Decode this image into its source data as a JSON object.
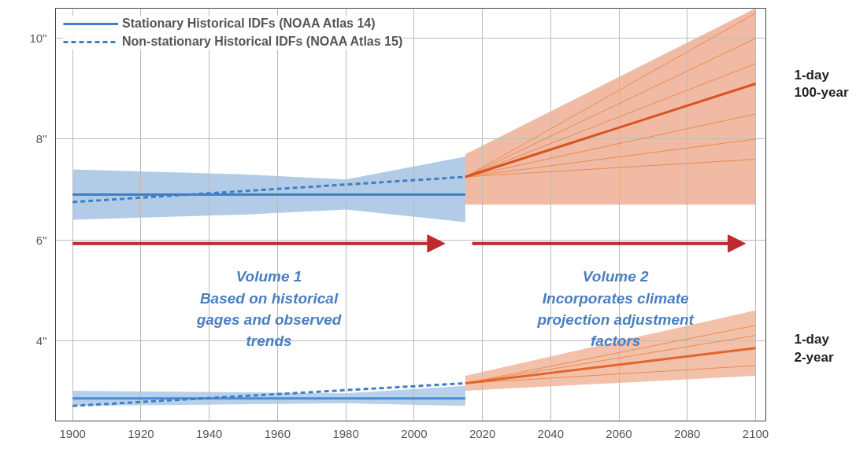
{
  "chart_data": {
    "type": "line",
    "xlim": [
      1895,
      2103
    ],
    "ylim": [
      2.4,
      10.6
    ],
    "xticks": [
      1900,
      1920,
      1940,
      1960,
      1980,
      2000,
      2020,
      2040,
      2060,
      2080,
      2100
    ],
    "yticks": [
      {
        "value": 4,
        "label": "4\""
      },
      {
        "value": 6,
        "label": "6\""
      },
      {
        "value": 8,
        "label": "8\""
      },
      {
        "value": 10,
        "label": "10\""
      }
    ],
    "grid": true,
    "legend": "top left",
    "series": [
      {
        "name": "Stationary Historical IDFs (NOAA Atlas 14)",
        "color": "#3f7fc4",
        "x": [
          1900,
          1950,
          1980,
          2015
        ],
        "values": [
          6.9,
          6.9,
          6.9,
          6.9
        ],
        "lower": [
          6.4,
          6.5,
          6.6,
          6.35
        ],
        "upper": [
          7.4,
          7.3,
          7.2,
          7.65
        ]
      },
      {
        "name": "Non-stationary Historical IDFs (NOAA Atlas 15)",
        "color": "#3f7fc4",
        "x": [
          1900,
          2015
        ],
        "values": [
          6.75,
          7.25
        ],
        "line_style": "dashed"
      },
      {
        "color": "#4b8bd0",
        "x": [
          1900,
          1980,
          2015
        ],
        "values": [
          2.85,
          2.85,
          2.85
        ],
        "lower": [
          2.7,
          2.75,
          2.7
        ],
        "upper": [
          3.0,
          2.95,
          3.1
        ]
      },
      {
        "color": "#3f7fc4",
        "x": [
          1900,
          2015
        ],
        "values": [
          2.7,
          3.15
        ],
        "line_style": "dashed"
      },
      {
        "color": "#e98c4f",
        "x": [
          2015,
          2100
        ],
        "values": [
          7.25,
          7.6
        ]
      },
      {
        "color": "#e98c4f",
        "x": [
          2015,
          2100
        ],
        "values": [
          7.25,
          8.0
        ]
      },
      {
        "color": "#e98c4f",
        "x": [
          2015,
          2100
        ],
        "values": [
          7.25,
          8.5
        ]
      },
      {
        "color": "#e98c4f",
        "x": [
          2015,
          2100
        ],
        "values": [
          7.25,
          9.5
        ]
      },
      {
        "color": "#e98c4f",
        "x": [
          2015,
          2100
        ],
        "values": [
          7.25,
          10.0
        ]
      },
      {
        "color": "#e98c4f",
        "x": [
          2015,
          2100
        ],
        "values": [
          7.25,
          10.5
        ]
      },
      {
        "color": "#d9531e",
        "x": [
          2015,
          2100
        ],
        "values": [
          7.25,
          9.1
        ],
        "lower": [
          6.7,
          6.7
        ],
        "upper": [
          7.7,
          10.6
        ]
      },
      {
        "color": "#e98c4f",
        "x": [
          2015,
          2100
        ],
        "values": [
          3.15,
          3.5
        ]
      },
      {
        "color": "#e98c4f",
        "x": [
          2015,
          2100
        ],
        "values": [
          3.15,
          4.1
        ]
      },
      {
        "color": "#e98c4f",
        "x": [
          2015,
          2100
        ],
        "values": [
          3.15,
          4.3
        ]
      },
      {
        "color": "#e2652b",
        "x": [
          2015,
          2100
        ],
        "values": [
          3.15,
          3.85
        ],
        "lower": [
          3.0,
          3.3
        ],
        "upper": [
          3.3,
          4.6
        ]
      }
    ],
    "annotations": [
      "Volume 1\nBased on historical\ngages and observed\ntrends",
      "Volume 2\nIncorporates climate\nprojection adjustment\nfactors",
      "1-day\n100-year",
      "1-day\n2-year"
    ]
  }
}
